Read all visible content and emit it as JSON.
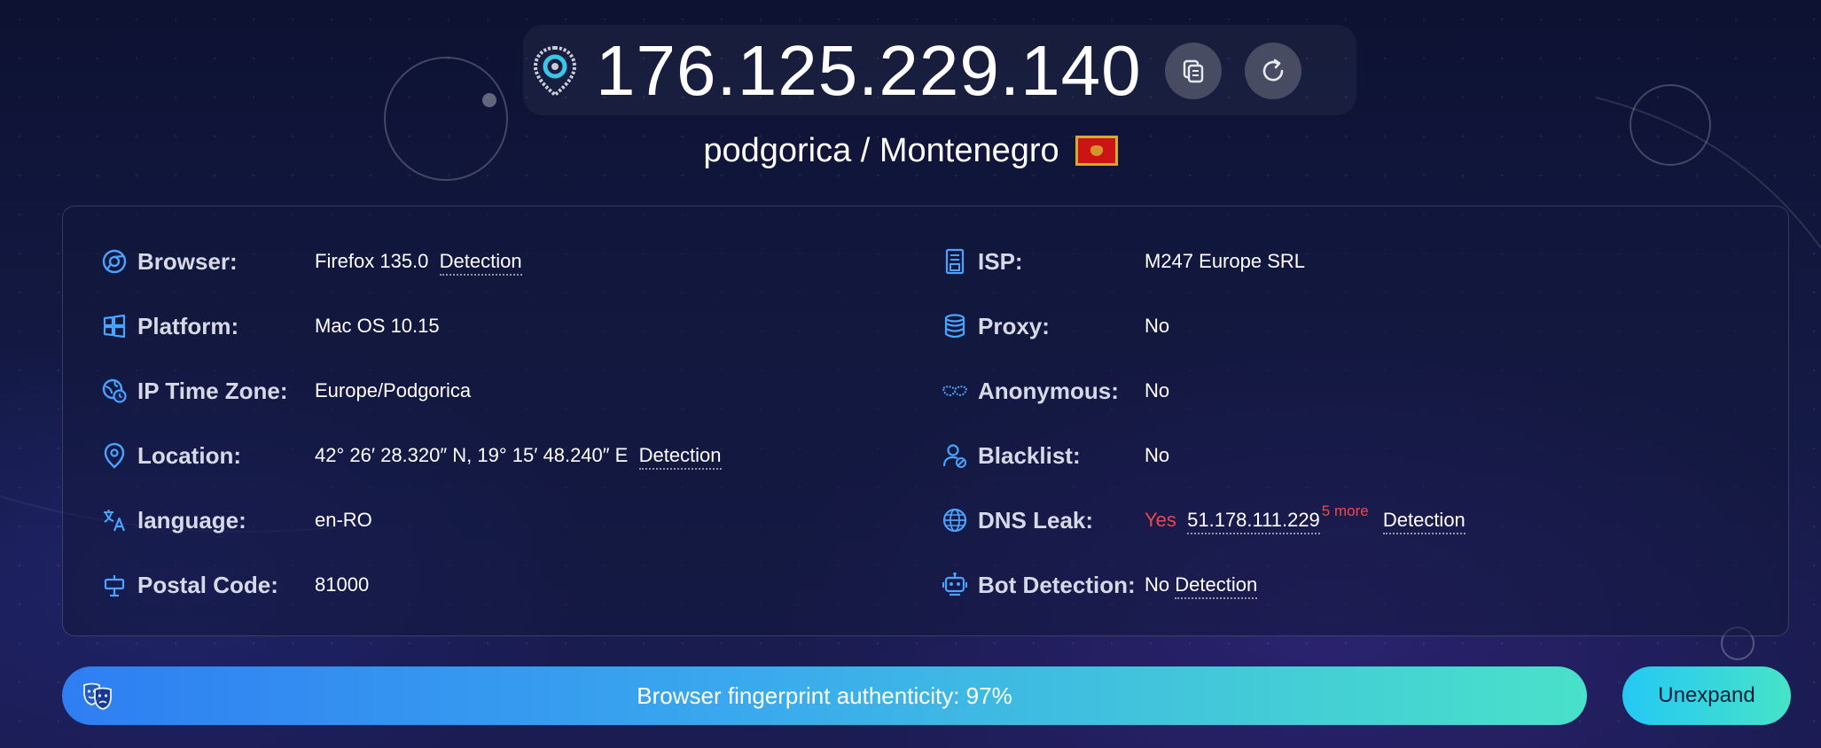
{
  "header": {
    "ip": "176.125.229.140",
    "location_icon": "location-pin-icon",
    "copy_icon": "copy-icon",
    "refresh_icon": "refresh-icon",
    "city_country": "podgorica / Montenegro",
    "flag_colors": {
      "field": "#cc1414",
      "border": "#d4ab30"
    }
  },
  "info": {
    "left": [
      {
        "icon": "browser-icon",
        "label": "Browser:",
        "value": "Firefox 135.0",
        "link": "Detection"
      },
      {
        "icon": "windows-icon",
        "label": "Platform:",
        "value": "Mac OS 10.15"
      },
      {
        "icon": "globe-clock-icon",
        "label": "IP Time Zone:",
        "value": "Europe/Podgorica"
      },
      {
        "icon": "map-pin-icon",
        "label": "Location:",
        "value": "42° 26′ 28.320″ N, 19° 15′ 48.240″ E",
        "link": "Detection"
      },
      {
        "icon": "translate-icon",
        "label": "language:",
        "value": "en-RO"
      },
      {
        "icon": "postal-icon",
        "label": "Postal Code:",
        "value": "81000"
      }
    ],
    "right": [
      {
        "icon": "server-icon",
        "label": "ISP:",
        "value": "M247 Europe SRL"
      },
      {
        "icon": "database-icon",
        "label": "Proxy:",
        "value": "No"
      },
      {
        "icon": "mask-icon",
        "label": "Anonymous:",
        "value": "No"
      },
      {
        "icon": "user-blacklist-icon",
        "label": "Blacklist:",
        "value": "No"
      },
      {
        "icon": "dns-globe-icon",
        "label": "DNS Leak:",
        "status": "Yes",
        "value": "51.178.111.229",
        "more": "5 more",
        "link": "Detection"
      },
      {
        "icon": "robot-icon",
        "label": "Bot Detection:",
        "value": "No",
        "link": "Detection"
      }
    ]
  },
  "authenticity": {
    "icon": "theater-masks-icon",
    "text": "Browser fingerprint authenticity: 97%",
    "percent": 97
  },
  "unexpand_label": "Unexpand",
  "colors": {
    "accent": "#3a8ff0",
    "warning": "#f04848",
    "icon_blue": "#4aa3ff"
  }
}
